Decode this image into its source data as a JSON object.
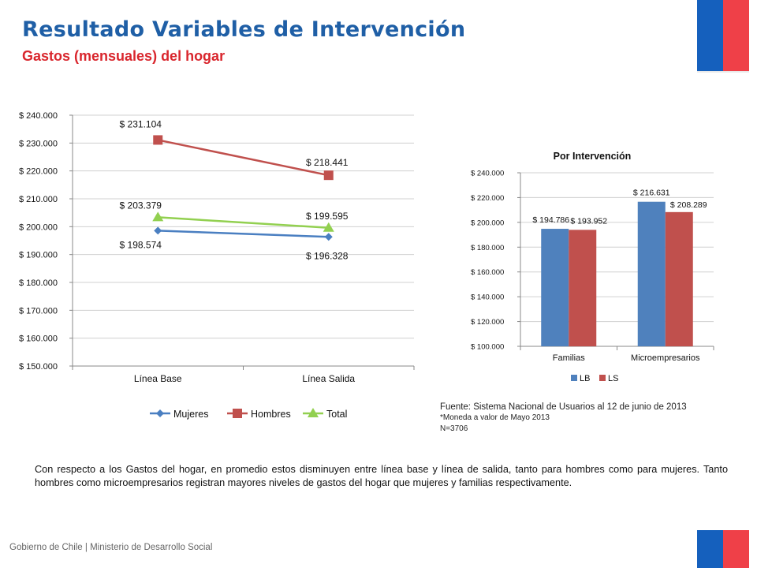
{
  "header": {
    "title": "Resultado Variables de Intervención",
    "subtitle": "Gastos (mensuales) del hogar"
  },
  "colors": {
    "title": "#1f5fa6",
    "subtitle": "#d9262d",
    "mujeres": "#4a7fc1",
    "hombres": "#c0504d",
    "total": "#92d050",
    "lb": "#4f81bd",
    "ls": "#c0504d",
    "flag_blue": "#1560bd",
    "flag_red": "#ef4048"
  },
  "chart_data": [
    {
      "type": "line",
      "title": "",
      "categories": [
        "Línea Base",
        "Línea Salida"
      ],
      "y_ticks": [
        "$ 240.000",
        "$ 230.000",
        "$ 220.000",
        "$ 210.000",
        "$ 200.000",
        "$ 190.000",
        "$ 180.000",
        "$ 170.000",
        "$ 160.000",
        "$ 150.000"
      ],
      "ylim": [
        150000,
        240000
      ],
      "grid": true,
      "legend_position": "bottom",
      "series": [
        {
          "name": "Mujeres",
          "values": [
            198574,
            196328
          ],
          "labels": [
            "$ 198.574",
            "$ 196.328"
          ],
          "marker": "diamond"
        },
        {
          "name": "Hombres",
          "values": [
            231104,
            218441
          ],
          "labels": [
            "$ 231.104",
            "$ 218.441"
          ],
          "marker": "square"
        },
        {
          "name": "Total",
          "values": [
            203379,
            199595
          ],
          "labels": [
            "$ 203.379",
            "$ 199.595"
          ],
          "marker": "triangle"
        }
      ]
    },
    {
      "type": "bar",
      "title": "Por Intervención",
      "categories": [
        "Familias",
        "Microempresarios"
      ],
      "y_ticks": [
        "$ 240.000",
        "$ 220.000",
        "$ 200.000",
        "$ 180.000",
        "$ 160.000",
        "$ 140.000",
        "$ 120.000",
        "$ 100.000"
      ],
      "ylim": [
        100000,
        240000
      ],
      "grid": true,
      "legend_position": "bottom",
      "series": [
        {
          "name": "LB",
          "values": [
            194786,
            216631
          ],
          "labels": [
            "$ 194.786",
            "$ 216.631"
          ]
        },
        {
          "name": "LS",
          "values": [
            193952,
            208289
          ],
          "labels": [
            "$ 193.952",
            "$ 208.289"
          ]
        }
      ]
    }
  ],
  "source": {
    "line1": "Fuente: Sistema Nacional de Usuarios al 12 de junio de 2013",
    "line2": "*Moneda a valor de Mayo 2013",
    "line3": "N=3706"
  },
  "body_text": "Con respecto a los Gastos del hogar, en promedio estos disminuyen entre línea base y línea de salida, tanto para hombres como para mujeres. Tanto hombres como microempresarios registran mayores niveles de gastos del hogar que mujeres y familias respectivamente.",
  "footer": "Gobierno de Chile | Ministerio de Desarrollo Social"
}
